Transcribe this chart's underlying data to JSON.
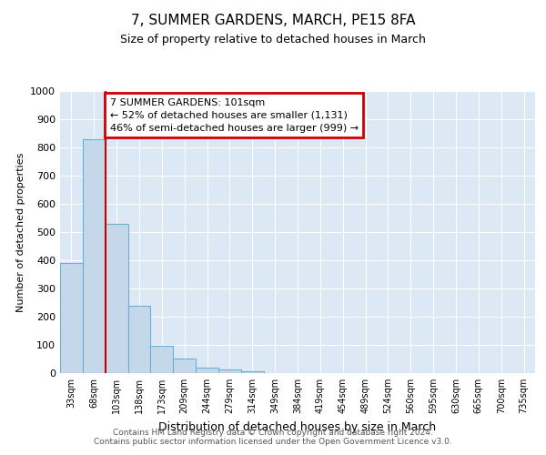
{
  "title": "7, SUMMER GARDENS, MARCH, PE15 8FA",
  "subtitle": "Size of property relative to detached houses in March",
  "xlabel": "Distribution of detached houses by size in March",
  "ylabel": "Number of detached properties",
  "bar_labels": [
    "33sqm",
    "68sqm",
    "103sqm",
    "138sqm",
    "173sqm",
    "209sqm",
    "244sqm",
    "279sqm",
    "314sqm",
    "349sqm",
    "384sqm",
    "419sqm",
    "454sqm",
    "489sqm",
    "524sqm",
    "560sqm",
    "595sqm",
    "630sqm",
    "665sqm",
    "700sqm",
    "735sqm"
  ],
  "bar_heights": [
    390,
    830,
    530,
    240,
    97,
    52,
    20,
    12,
    8,
    0,
    0,
    0,
    0,
    0,
    0,
    0,
    0,
    0,
    0,
    0,
    0
  ],
  "bar_color": "#c5d8ea",
  "bar_edge_color": "#6aaed6",
  "highlight_line_color": "#cc0000",
  "annotation_title": "7 SUMMER GARDENS: 101sqm",
  "annotation_line1": "← 52% of detached houses are smaller (1,131)",
  "annotation_line2": "46% of semi-detached houses are larger (999) →",
  "annotation_box_color": "#cc0000",
  "ylim": [
    0,
    1000
  ],
  "yticks": [
    0,
    100,
    200,
    300,
    400,
    500,
    600,
    700,
    800,
    900,
    1000
  ],
  "background_color": "#dce9f5",
  "footer1": "Contains HM Land Registry data © Crown copyright and database right 2024.",
  "footer2": "Contains public sector information licensed under the Open Government Licence v3.0."
}
